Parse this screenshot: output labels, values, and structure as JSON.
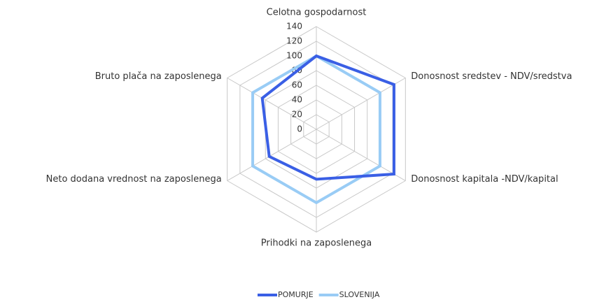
{
  "chart_data": {
    "type": "radar",
    "categories": [
      "Celotna gospodarnost",
      "Donosnost sredstev - NDV/sredstva",
      "Donosnost kapitala -NDV/kapital",
      "Prihodki na zaposlenega",
      "Neto dodana vrednost na zaposlenega",
      "Bruto plača na zaposlenega"
    ],
    "series": [
      {
        "name": "POMURJE",
        "color": "#3a5fe5",
        "values": [
          100,
          122,
          122,
          68,
          74,
          85
        ]
      },
      {
        "name": "SLOVENIJA",
        "color": "#99ccf5",
        "values": [
          100,
          100,
          100,
          100,
          100,
          100
        ]
      }
    ],
    "ylim": [
      0,
      140
    ],
    "yticks": [
      0,
      20,
      40,
      60,
      80,
      100,
      120,
      140
    ],
    "grid": true,
    "legend": "bottom"
  }
}
